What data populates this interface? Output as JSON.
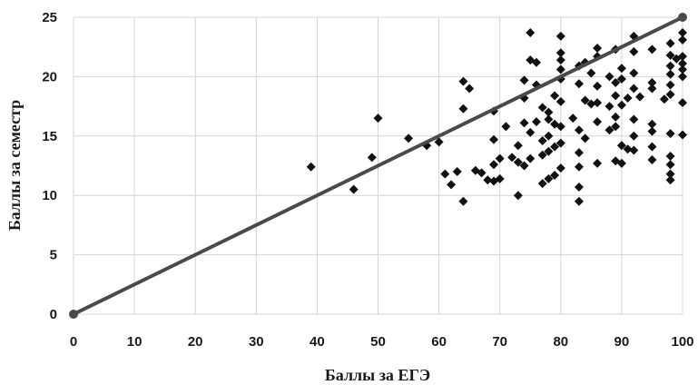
{
  "chart_data": {
    "type": "scatter",
    "title": "",
    "xlabel": "Баллы за ЕГЭ",
    "ylabel": "Баллы за семестр",
    "xlim": [
      0,
      100
    ],
    "ylim": [
      0,
      25
    ],
    "x_ticks": [
      "0",
      "10",
      "20",
      "30",
      "40",
      "50",
      "60",
      "70",
      "80",
      "90",
      "100"
    ],
    "y_ticks": [
      "0",
      "5",
      "10",
      "15",
      "20",
      "25"
    ],
    "grid": true,
    "legend": "none",
    "marker_color": "#111111",
    "line_color": "#4a4a4a",
    "reference_line": {
      "x": [
        0,
        100
      ],
      "y": [
        0,
        25
      ]
    },
    "points": [
      [
        39,
        12.4
      ],
      [
        46,
        10.5
      ],
      [
        49,
        13.2
      ],
      [
        50,
        16.5
      ],
      [
        55,
        14.8
      ],
      [
        58,
        14.2
      ],
      [
        60,
        14.5
      ],
      [
        61,
        11.8
      ],
      [
        62,
        10.9
      ],
      [
        63,
        12.0
      ],
      [
        64,
        9.5
      ],
      [
        64,
        17.3
      ],
      [
        64,
        19.6
      ],
      [
        65,
        19.0
      ],
      [
        66,
        12.1
      ],
      [
        67,
        11.9
      ],
      [
        68,
        11.3
      ],
      [
        69,
        11.2
      ],
      [
        69,
        12.6
      ],
      [
        69,
        14.7
      ],
      [
        69,
        17.1
      ],
      [
        70,
        11.4
      ],
      [
        70,
        13.1
      ],
      [
        71,
        15.8
      ],
      [
        72,
        13.2
      ],
      [
        73,
        10.0
      ],
      [
        73,
        12.8
      ],
      [
        73,
        14.2
      ],
      [
        74,
        12.5
      ],
      [
        74,
        16.1
      ],
      [
        74,
        18.2
      ],
      [
        74,
        19.7
      ],
      [
        75,
        13.1
      ],
      [
        75,
        15.3
      ],
      [
        75,
        21.4
      ],
      [
        75,
        23.7
      ],
      [
        76,
        16.2
      ],
      [
        76,
        19.3
      ],
      [
        76,
        21.2
      ],
      [
        77,
        11.0
      ],
      [
        77,
        13.4
      ],
      [
        77,
        14.6
      ],
      [
        77,
        17.4
      ],
      [
        78,
        11.4
      ],
      [
        78,
        13.7
      ],
      [
        78,
        15.0
      ],
      [
        78,
        16.4
      ],
      [
        78,
        17.0
      ],
      [
        79,
        11.7
      ],
      [
        79,
        14.1
      ],
      [
        79,
        16.0
      ],
      [
        79,
        18.4
      ],
      [
        80,
        12.3
      ],
      [
        80,
        14.4
      ],
      [
        80,
        15.8
      ],
      [
        80,
        17.9
      ],
      [
        80,
        19.8
      ],
      [
        80,
        20.6
      ],
      [
        80,
        21.4
      ],
      [
        80,
        22.0
      ],
      [
        80,
        23.4
      ],
      [
        82,
        16.5
      ],
      [
        83,
        9.5
      ],
      [
        83,
        10.7
      ],
      [
        83,
        12.4
      ],
      [
        83,
        13.6
      ],
      [
        83,
        15.5
      ],
      [
        83,
        19.4
      ],
      [
        83,
        20.9
      ],
      [
        84,
        14.8
      ],
      [
        84,
        18.0
      ],
      [
        84,
        21.2
      ],
      [
        85,
        17.7
      ],
      [
        85,
        20.3
      ],
      [
        86,
        12.7
      ],
      [
        86,
        16.2
      ],
      [
        86,
        17.8
      ],
      [
        86,
        19.2
      ],
      [
        86,
        21.7
      ],
      [
        86,
        22.4
      ],
      [
        88,
        15.5
      ],
      [
        88,
        17.5
      ],
      [
        88,
        20.0
      ],
      [
        89,
        12.9
      ],
      [
        89,
        15.8
      ],
      [
        89,
        16.6
      ],
      [
        89,
        18.4
      ],
      [
        89,
        19.5
      ],
      [
        89,
        22.3
      ],
      [
        90,
        12.7
      ],
      [
        90,
        14.2
      ],
      [
        90,
        17.6
      ],
      [
        90,
        19.8
      ],
      [
        90,
        20.7
      ],
      [
        91,
        13.9
      ],
      [
        91,
        18.2
      ],
      [
        92,
        13.8
      ],
      [
        92,
        15.0
      ],
      [
        92,
        16.4
      ],
      [
        92,
        19.0
      ],
      [
        92,
        20.3
      ],
      [
        92,
        22.1
      ],
      [
        92,
        23.4
      ],
      [
        93,
        18.3
      ],
      [
        95,
        13.0
      ],
      [
        95,
        14.1
      ],
      [
        95,
        15.4
      ],
      [
        95,
        16.0
      ],
      [
        95,
        19.0
      ],
      [
        95,
        19.5
      ],
      [
        95,
        22.3
      ],
      [
        97,
        18.1
      ],
      [
        98,
        11.3
      ],
      [
        98,
        11.8
      ],
      [
        98,
        12.6
      ],
      [
        98,
        13.3
      ],
      [
        98,
        15.2
      ],
      [
        98,
        18.5
      ],
      [
        98,
        19.3
      ],
      [
        98,
        20.2
      ],
      [
        98,
        20.9
      ],
      [
        98,
        21.8
      ],
      [
        98,
        22.8
      ],
      [
        99,
        21.5
      ],
      [
        100,
        15.1
      ],
      [
        100,
        17.8
      ],
      [
        100,
        20.0
      ],
      [
        100,
        20.6
      ],
      [
        100,
        21.1
      ],
      [
        100,
        21.7
      ],
      [
        100,
        23.1
      ],
      [
        100,
        23.7
      ]
    ]
  }
}
